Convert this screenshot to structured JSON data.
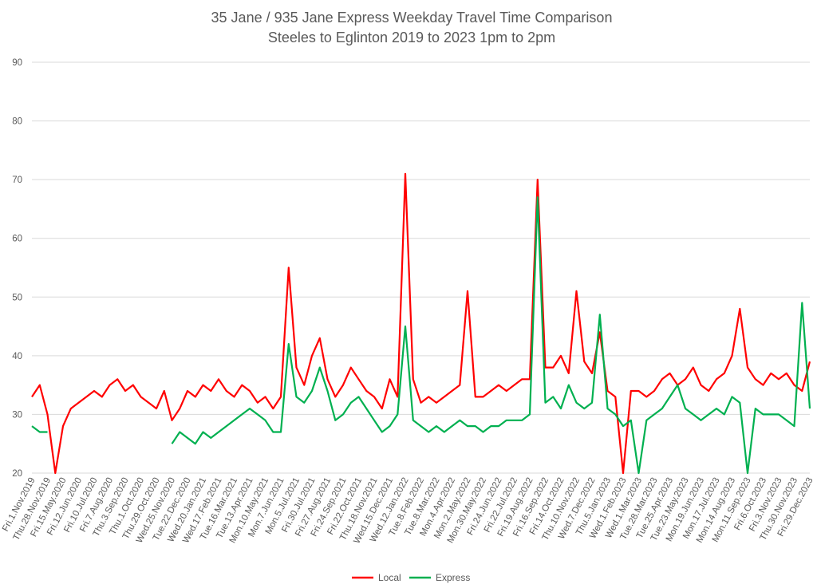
{
  "chart_data": {
    "type": "line",
    "title": "35 Jane / 935 Jane Express Weekday Travel Time Comparison",
    "subtitle": "Steeles to Eglinton 2019 to 2023 1pm to 2pm",
    "xlabel": "",
    "ylabel": "",
    "ylim": [
      20,
      90
    ],
    "yticks": [
      20,
      30,
      40,
      50,
      60,
      70,
      80,
      90
    ],
    "grid": true,
    "legend": "bottom",
    "categories": [
      "Fri.1.Nov.2019",
      "",
      "Thu.28.Nov.2019",
      "",
      "Fri.15.May.2020",
      "",
      "Fri.12.Jun.2020",
      "",
      "Fri.10.Jul.2020",
      "",
      "Fri.7.Aug.2020",
      "",
      "Thu.3.Sep.2020",
      "",
      "Thu.1.Oct.2020",
      "",
      "Thu.29.Oct.2020",
      "",
      "Wed.25.Nov.2020",
      "",
      "Tue.22.Dec.2020",
      "",
      "Wed.20.Jan.2021",
      "",
      "Wed.17.Feb.2021",
      "",
      "Tue.16.Mar.2021",
      "",
      "Tue.13.Apr.2021",
      "",
      "Mon.10.May.2021",
      "",
      "Mon.7.Jun.2021",
      "",
      "Mon.5.Jul.2021",
      "",
      "Fri.30.Jul.2021",
      "",
      "Fri.27.Aug.2021",
      "",
      "Fri.24.Sep.2021",
      "",
      "Fri.22.Oct.2021",
      "",
      "Thu.18.Nov.2021",
      "",
      "Wed.15.Dec.2021",
      "",
      "Wed.12.Jan.2022",
      "",
      "Tue.8.Feb.2022",
      "",
      "Tue.8.Mar.2022",
      "",
      "Mon.4.Apr.2022",
      "",
      "Mon.2.May.2022",
      "",
      "Mon.30.May.2022",
      "",
      "Fri.24.Jun.2022",
      "",
      "Fri.22.Jul.2022",
      "",
      "Fri.19.Aug.2022",
      "",
      "Fri.16.Sep.2022",
      "",
      "Fri.14.Oct.2022",
      "",
      "Thu.10.Nov.2022",
      "",
      "Wed.7.Dec.2022",
      "",
      "Thu.5.Jan.2023",
      "",
      "Wed.1.Feb.2023",
      "",
      "Wed.1.Mar.2023",
      "",
      "Tue.28.Mar.2023",
      "",
      "Tue.25.Apr.2023",
      "",
      "Tue.23.May.2023",
      "",
      "Mon.19.Jun.2023",
      "",
      "Mon.17.Jul.2023",
      "",
      "Mon.14.Aug.2023",
      "",
      "Mon.11.Sep.2023",
      "",
      "Fri.6.Oct.2023",
      "",
      "Fri.3.Nov.2023",
      "",
      "Thu.30.Nov.2023",
      "",
      "Fri.29.Dec.2023"
    ],
    "series": [
      {
        "name": "Local",
        "color": "#FF0000",
        "values": [
          33,
          35,
          30,
          20,
          28,
          31,
          32,
          33,
          34,
          33,
          35,
          36,
          34,
          35,
          33,
          32,
          31,
          34,
          29,
          31,
          34,
          33,
          35,
          34,
          36,
          34,
          33,
          35,
          34,
          32,
          33,
          31,
          33,
          55,
          38,
          35,
          40,
          43,
          36,
          33,
          35,
          38,
          36,
          34,
          33,
          31,
          36,
          33,
          71,
          36,
          32,
          33,
          32,
          33,
          34,
          35,
          51,
          33,
          33,
          34,
          35,
          34,
          35,
          36,
          36,
          70,
          38,
          38,
          40,
          37,
          51,
          39,
          37,
          44,
          34,
          33,
          20,
          34,
          34,
          33,
          34,
          36,
          37,
          35,
          36,
          38,
          35,
          34,
          36,
          37,
          40,
          48,
          38,
          36,
          35,
          37,
          36,
          37,
          35,
          34,
          39
        ]
      },
      {
        "name": "Express",
        "color": "#00B050",
        "values": [
          28,
          27,
          27,
          null,
          null,
          null,
          null,
          null,
          null,
          null,
          null,
          null,
          null,
          null,
          null,
          null,
          null,
          null,
          25,
          27,
          26,
          25,
          27,
          26,
          27,
          28,
          29,
          30,
          31,
          30,
          29,
          27,
          27,
          42,
          33,
          32,
          34,
          38,
          34,
          29,
          30,
          32,
          33,
          31,
          29,
          27,
          28,
          30,
          45,
          29,
          28,
          27,
          28,
          27,
          28,
          29,
          28,
          28,
          27,
          28,
          28,
          29,
          29,
          29,
          30,
          67,
          32,
          33,
          31,
          35,
          32,
          31,
          32,
          47,
          31,
          30,
          28,
          29,
          20,
          29,
          30,
          31,
          33,
          35,
          31,
          30,
          29,
          30,
          31,
          30,
          33,
          32,
          20,
          31,
          30,
          30,
          30,
          29,
          28,
          49,
          31
        ]
      }
    ]
  }
}
